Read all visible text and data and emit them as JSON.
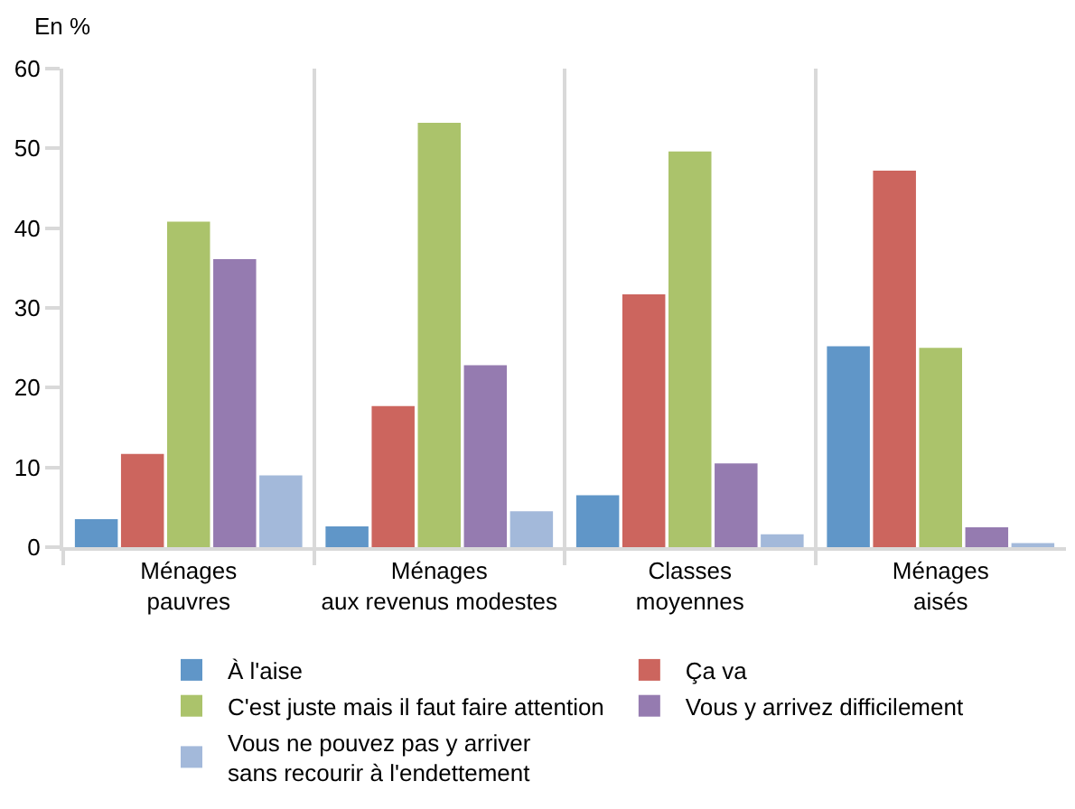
{
  "chart_data": {
    "type": "bar",
    "ylabel": "En %",
    "categories": [
      "Ménages\npauvres",
      "Ménages\naux revenus modestes",
      "Classes\nmoyennes",
      "Ménages\naisés"
    ],
    "series": [
      {
        "name": "À l'aise",
        "color": "#6096c8",
        "values": [
          3.5,
          2.6,
          6.5,
          25.2
        ]
      },
      {
        "name": "Ça va",
        "color": "#cc655e",
        "values": [
          11.7,
          17.7,
          31.7,
          47.2
        ]
      },
      {
        "name": "C'est juste mais il faut faire attention",
        "color": "#abc36b",
        "values": [
          40.8,
          53.2,
          49.6,
          25.0
        ]
      },
      {
        "name": "Vous y arrivez difficilement",
        "color": "#957bb0",
        "values": [
          36.1,
          22.8,
          10.5,
          2.5
        ]
      },
      {
        "name": "Vous ne pouvez pas y arriver\nsans recourir à l'endettement",
        "color": "#a3b9da",
        "values": [
          9.0,
          4.5,
          1.6,
          0.5
        ]
      }
    ],
    "ylim": [
      0,
      60
    ],
    "yticks": [
      0,
      10,
      20,
      30,
      40,
      50,
      60
    ],
    "grid": "x",
    "legend": "bottom"
  }
}
